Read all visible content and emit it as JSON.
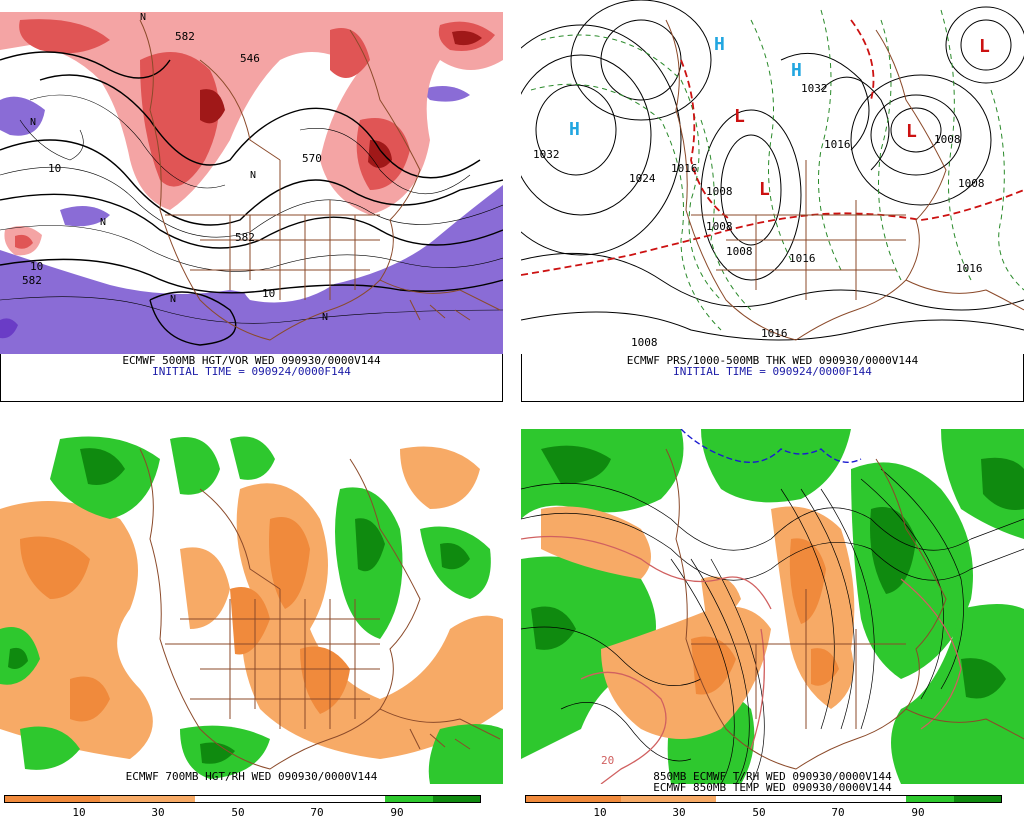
{
  "panels": {
    "p1": {
      "line1": "ECMWF 500MB HGT/VOR WED 090930/0000V144",
      "line2": "INITIAL TIME = 090924/0000F144",
      "labels": [
        "582",
        "546",
        "570",
        "582",
        "10",
        "10",
        "582",
        "10",
        "N",
        "N",
        "N",
        "N",
        "N",
        "N"
      ]
    },
    "p2": {
      "line1": "ECMWF PRS/1000-500MB THK WED 090930/0000V144",
      "line2": "INITIAL TIME = 090924/0000F144",
      "labels": [
        "1032",
        "1032",
        "1024",
        "1016",
        "1008",
        "1008",
        "1008",
        "1016",
        "1016",
        "1008",
        "1008",
        "1016",
        "1016",
        "1008"
      ],
      "highs": [
        "H",
        "H",
        "H"
      ],
      "lows": [
        "L",
        "L",
        "L",
        "L"
      ]
    },
    "p3": {
      "line1": "ECMWF 700MB HGT/RH WED 090930/0000V144",
      "ticks": [
        "10",
        "30",
        "50",
        "70",
        "90"
      ]
    },
    "p4": {
      "line1": "850MB ECMWF T/RH WED 090930/0000V144",
      "line2": "ECMWF 850MB TEMP WED 090930/0000V144",
      "ticks": [
        "10",
        "30",
        "50",
        "70",
        "90"
      ],
      "contour_label": "20"
    }
  },
  "colors": {
    "dry1": "#f08a3c",
    "dry2": "#f7aa66",
    "moist1": "#2ec82e",
    "moist2": "#0f8a0f",
    "vor1": "#f4a4a4",
    "vor2": "#e05555",
    "vor3": "#a01818",
    "neg": "#8a6cd6",
    "border": "#8b4a2a",
    "thick": "#cc1111",
    "dashgreen": "#2a8a2a",
    "hcol": "#22a6e0",
    "lcol": "#cc1111"
  }
}
